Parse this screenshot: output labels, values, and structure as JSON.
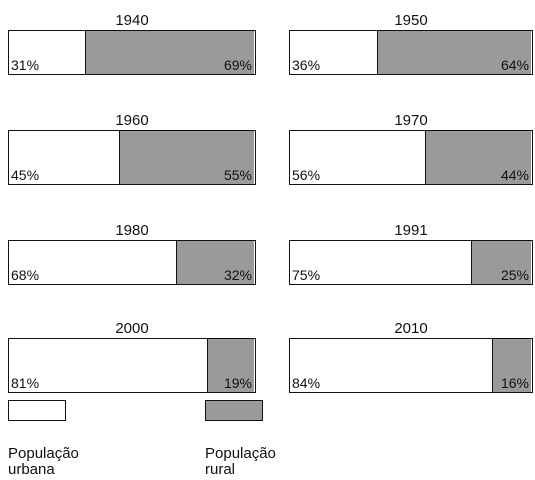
{
  "chart_data": {
    "type": "stacked-bar",
    "categories": [
      "1940",
      "1950",
      "1960",
      "1970",
      "1980",
      "1991",
      "2000",
      "2010"
    ],
    "xlim": [
      0,
      100
    ],
    "series": [
      {
        "name": "População urbana",
        "color": "#ffffff",
        "values": [
          31,
          36,
          45,
          56,
          68,
          75,
          81,
          84
        ],
        "value_labels": [
          "31%",
          "36%",
          "45%",
          "56%",
          "68%",
          "75%",
          "81%",
          "84%"
        ]
      },
      {
        "name": "População rural",
        "color": "#9a9a9a",
        "values": [
          69,
          64,
          55,
          44,
          32,
          25,
          19,
          16
        ],
        "value_labels": [
          "69%",
          "64%",
          "55%",
          "44%",
          "32%",
          "25%",
          "19%",
          "16%"
        ]
      }
    ]
  }
}
